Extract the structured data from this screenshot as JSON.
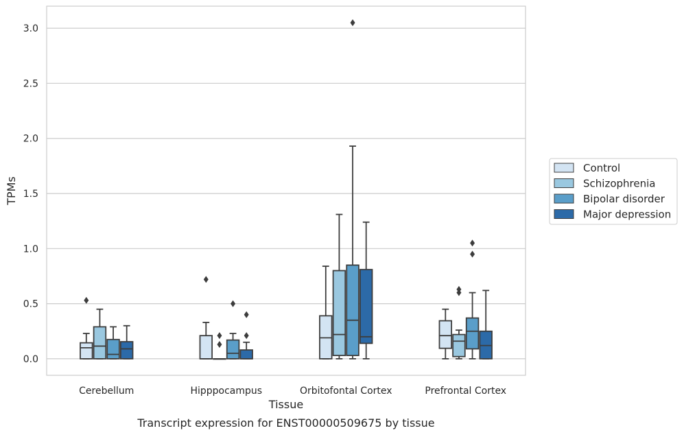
{
  "chart_data": {
    "type": "box",
    "xlabel": "Tissue",
    "ylabel": "TPMs",
    "caption": "Transcript expression for ENST00000509675 by tissue",
    "ylim": [
      -0.15,
      3.2
    ],
    "yticks": [
      0.0,
      0.5,
      1.0,
      1.5,
      2.0,
      2.5,
      3.0
    ],
    "ytick_labels": [
      "0.0",
      "0.5",
      "1.0",
      "1.5",
      "2.0",
      "2.5",
      "3.0"
    ],
    "grid": "horizontal",
    "legend_position": "right",
    "categories": [
      "Cerebellum",
      "Hipppocampus",
      "Orbitofontal Cortex",
      "Prefrontal Cortex"
    ],
    "series": [
      {
        "name": "Control",
        "color": "#d3e4f3",
        "boxes": [
          {
            "min": 0.0,
            "q1": 0.0,
            "median": 0.1,
            "q3": 0.145,
            "max": 0.23,
            "outliers": [
              0.53
            ]
          },
          {
            "min": 0.0,
            "q1": 0.0,
            "median": 0.0,
            "q3": 0.21,
            "max": 0.33,
            "outliers": [
              0.72
            ]
          },
          {
            "min": 0.0,
            "q1": 0.0,
            "median": 0.19,
            "q3": 0.39,
            "max": 0.84,
            "outliers": []
          },
          {
            "min": 0.0,
            "q1": 0.095,
            "median": 0.21,
            "q3": 0.345,
            "max": 0.45,
            "outliers": []
          }
        ]
      },
      {
        "name": "Schizophrenia",
        "color": "#9ac8e0",
        "boxes": [
          {
            "min": 0.0,
            "q1": 0.0,
            "median": 0.115,
            "q3": 0.29,
            "max": 0.45,
            "outliers": []
          },
          {
            "min": 0.0,
            "q1": 0.0,
            "median": 0.0,
            "q3": 0.0,
            "max": 0.0,
            "outliers": [
              0.13,
              0.21
            ]
          },
          {
            "min": 0.0,
            "q1": 0.03,
            "median": 0.22,
            "q3": 0.8,
            "max": 1.31,
            "outliers": []
          },
          {
            "min": 0.0,
            "q1": 0.02,
            "median": 0.16,
            "q3": 0.22,
            "max": 0.26,
            "outliers": [
              0.6,
              0.63
            ]
          }
        ]
      },
      {
        "name": "Bipolar disorder",
        "color": "#5a9ec9",
        "boxes": [
          {
            "min": 0.0,
            "q1": 0.0,
            "median": 0.04,
            "q3": 0.175,
            "max": 0.29,
            "outliers": []
          },
          {
            "min": 0.0,
            "q1": 0.0,
            "median": 0.05,
            "q3": 0.17,
            "max": 0.23,
            "outliers": [
              0.5
            ]
          },
          {
            "min": 0.0,
            "q1": 0.03,
            "median": 0.35,
            "q3": 0.85,
            "max": 1.93,
            "outliers": [
              3.05
            ]
          },
          {
            "min": 0.0,
            "q1": 0.09,
            "median": 0.25,
            "q3": 0.37,
            "max": 0.6,
            "outliers": [
              0.95,
              1.05
            ]
          }
        ]
      },
      {
        "name": "Major depression",
        "color": "#2c6aa8",
        "boxes": [
          {
            "min": 0.0,
            "q1": 0.0,
            "median": 0.09,
            "q3": 0.155,
            "max": 0.3,
            "outliers": []
          },
          {
            "min": 0.0,
            "q1": 0.0,
            "median": 0.0,
            "q3": 0.08,
            "max": 0.15,
            "outliers": [
              0.21,
              0.4
            ]
          },
          {
            "min": 0.0,
            "q1": 0.14,
            "median": 0.2,
            "q3": 0.81,
            "max": 1.24,
            "outliers": []
          },
          {
            "min": 0.0,
            "q1": 0.0,
            "median": 0.12,
            "q3": 0.25,
            "max": 0.62,
            "outliers": []
          }
        ]
      }
    ]
  }
}
